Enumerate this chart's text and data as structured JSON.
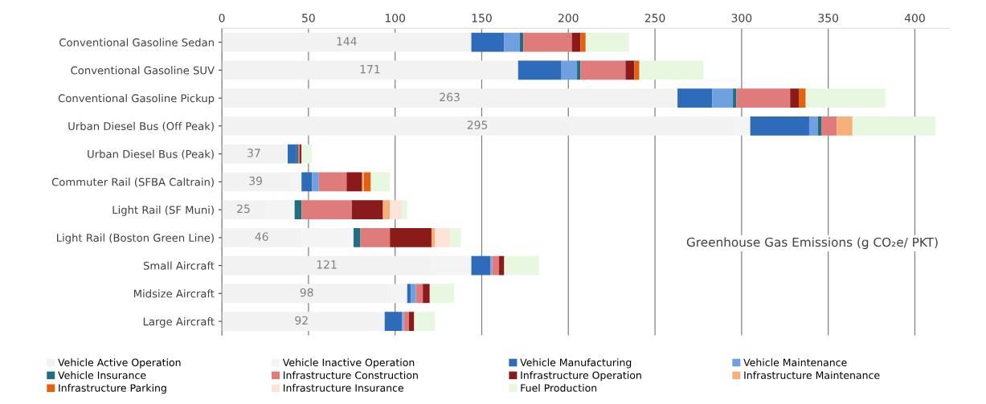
{
  "chart_data": {
    "type": "bar",
    "orientation": "horizontal",
    "stacked": true,
    "xlabel": "Greenhouse Gas Emissions (g CO₂e/ PKT)",
    "categories": [
      "Conventional Gasoline Sedan",
      "Conventional Gasoline SUV",
      "Conventional Gasoline Pickup",
      "Urban Diesel Bus (Off Peak)",
      "Urban Diesel Bus (Peak)",
      "Commuter Rail (SFBA Caltrain)",
      "Light Rail (SF Muni)",
      "Light Rail (Boston Green Line)",
      "Small Aircraft",
      "Midsize Aircraft",
      "Large Aircraft"
    ],
    "series": [
      {
        "name": "Vehicle Active Operation",
        "color": "#f2f2f2",
        "values": [
          144,
          171,
          263,
          295,
          37,
          39,
          25,
          46,
          121,
          98,
          92
        ],
        "value_labels": [
          "144",
          "171",
          "263",
          "295",
          "37",
          "39",
          "25",
          "46",
          "121",
          "98",
          "92"
        ]
      },
      {
        "name": "Vehicle Inactive Operation",
        "color": "#f4f4f4",
        "values": [
          0,
          0,
          0,
          10,
          1,
          7,
          17,
          30,
          23,
          9,
          2
        ]
      },
      {
        "name": "Vehicle Manufacturing",
        "color": "#2e6bb8",
        "values": [
          19,
          25,
          20,
          34,
          5,
          6,
          0,
          0,
          11,
          2,
          10
        ]
      },
      {
        "name": "Vehicle Maintenance",
        "color": "#6fa0e0",
        "values": [
          9,
          9,
          12,
          5,
          0,
          4,
          0,
          0,
          1,
          3,
          1
        ]
      },
      {
        "name": "Vehicle Insurance",
        "color": "#1f6f80",
        "values": [
          2,
          2,
          2,
          2,
          1,
          0,
          4,
          4,
          0,
          0,
          0
        ]
      },
      {
        "name": "Infrastructure Construction",
        "color": "#e07b7b",
        "values": [
          28,
          26,
          31,
          9,
          1,
          16,
          29,
          17,
          4,
          4,
          3
        ]
      },
      {
        "name": "Infrastructure Operation",
        "color": "#8b1a1a",
        "values": [
          5,
          5,
          5,
          0,
          1,
          9,
          18,
          24,
          3,
          4,
          3
        ]
      },
      {
        "name": "Infrastructure Maintenance",
        "color": "#f8b07a",
        "values": [
          0,
          0,
          0,
          9,
          0,
          1,
          4,
          2,
          0,
          0,
          0
        ]
      },
      {
        "name": "Infrastructure Parking",
        "color": "#e2620f",
        "values": [
          3,
          3,
          4,
          0,
          0,
          4,
          0,
          0,
          0,
          0,
          0
        ]
      },
      {
        "name": "Infrastructure Insurance",
        "color": "#fde4d8",
        "values": [
          0,
          0,
          0,
          0,
          0,
          0,
          7,
          9,
          0,
          0,
          0
        ]
      },
      {
        "name": "Fuel Production",
        "color": "#e8f8e0",
        "values": [
          25,
          37,
          46,
          48,
          6,
          11,
          3,
          6,
          20,
          14,
          12
        ]
      }
    ],
    "xlim": [
      0,
      420
    ],
    "xticks": [
      0,
      50,
      100,
      150,
      200,
      250,
      300,
      350,
      400
    ],
    "grid": "x",
    "legend": "bottom"
  }
}
